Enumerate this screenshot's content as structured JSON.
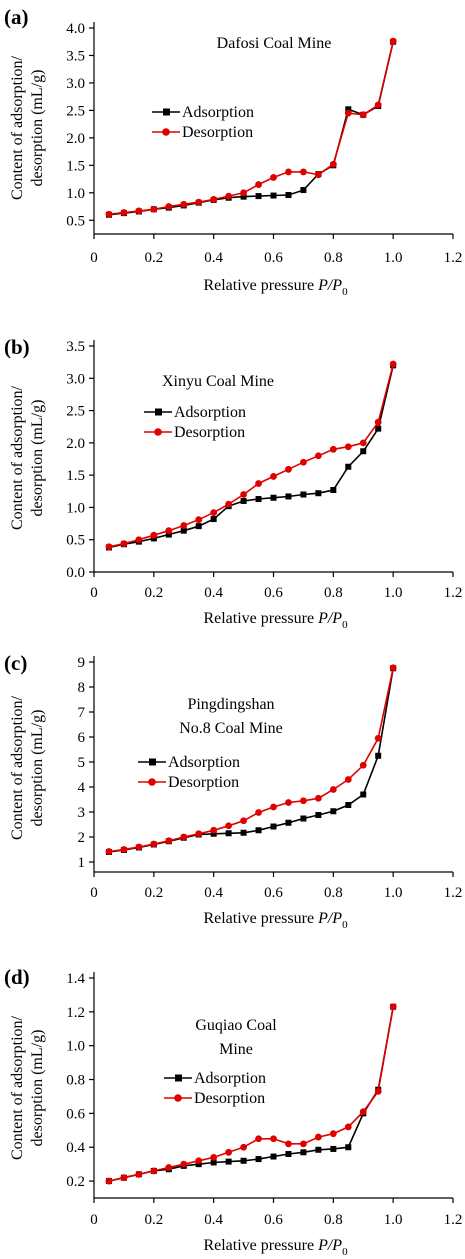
{
  "chart_data": [
    {
      "type": "line",
      "panel": "(a)",
      "title_lines": [
        "Dafosi Coal Mine"
      ],
      "xlabel": "Relative pressure ",
      "xlabel_italic": "P/P",
      "xlabel_sub": "0",
      "ylabel_lines": [
        "Content of adsorption/",
        "desorption (mL/g)"
      ],
      "xlim": [
        0,
        1.2
      ],
      "ylim": [
        0.25,
        4.0
      ],
      "xticks": [
        0,
        0.2,
        0.4,
        0.6,
        0.8,
        1.0,
        1.2
      ],
      "xtick_labels": [
        "0",
        "0.2",
        "0.4",
        "0.6",
        "0.8",
        "1.0",
        "1.2"
      ],
      "yticks": [
        0.5,
        1.0,
        1.5,
        2.0,
        2.5,
        3.0,
        3.5,
        4.0
      ],
      "ytick_labels": [
        "0.5",
        "1.0",
        "1.5",
        "2.0",
        "2.5",
        "3.0",
        "3.5",
        "4.0"
      ],
      "legend": "center-left",
      "series": [
        {
          "name": "Adsorption",
          "color": "#000000",
          "marker": "square",
          "x": [
            0.05,
            0.1,
            0.15,
            0.2,
            0.25,
            0.3,
            0.35,
            0.4,
            0.45,
            0.5,
            0.55,
            0.6,
            0.65,
            0.7,
            0.75,
            0.8,
            0.85,
            0.9,
            0.95,
            1.0
          ],
          "y": [
            0.6,
            0.63,
            0.66,
            0.7,
            0.73,
            0.77,
            0.82,
            0.87,
            0.91,
            0.93,
            0.94,
            0.95,
            0.96,
            1.05,
            1.34,
            1.5,
            2.52,
            2.42,
            2.58,
            3.75
          ]
        },
        {
          "name": "Desorption",
          "color": "#e00000",
          "marker": "circle",
          "x": [
            0.05,
            0.1,
            0.15,
            0.2,
            0.25,
            0.3,
            0.35,
            0.4,
            0.45,
            0.5,
            0.55,
            0.6,
            0.65,
            0.7,
            0.75,
            0.8,
            0.85,
            0.9,
            0.95,
            1.0
          ],
          "y": [
            0.61,
            0.64,
            0.67,
            0.7,
            0.75,
            0.79,
            0.83,
            0.88,
            0.94,
            1.0,
            1.15,
            1.28,
            1.38,
            1.38,
            1.33,
            1.52,
            2.45,
            2.42,
            2.6,
            3.76
          ]
        }
      ]
    },
    {
      "type": "line",
      "panel": "(b)",
      "title_lines": [
        "Xinyu Coal Mine"
      ],
      "xlabel": "Relative pressure ",
      "xlabel_italic": "P/P",
      "xlabel_sub": "0",
      "ylabel_lines": [
        "Content of adsorption/",
        "desorption (mL/g)"
      ],
      "xlim": [
        0,
        1.2
      ],
      "ylim": [
        0.0,
        3.5
      ],
      "xticks": [
        0,
        0.2,
        0.4,
        0.6,
        0.8,
        1.0,
        1.2
      ],
      "xtick_labels": [
        "0",
        "0.2",
        "0.4",
        "0.6",
        "0.8",
        "1.0",
        "1.2"
      ],
      "yticks": [
        0.0,
        0.5,
        1.0,
        1.5,
        2.0,
        2.5,
        3.0,
        3.5
      ],
      "ytick_labels": [
        "0.0",
        "0.5",
        "1.0",
        "1.5",
        "2.0",
        "2.5",
        "3.0",
        "3.5"
      ],
      "legend": "center-left",
      "series": [
        {
          "name": "Adsorption",
          "color": "#000000",
          "marker": "square",
          "x": [
            0.05,
            0.1,
            0.15,
            0.2,
            0.25,
            0.3,
            0.35,
            0.4,
            0.45,
            0.5,
            0.55,
            0.6,
            0.65,
            0.7,
            0.75,
            0.8,
            0.85,
            0.9,
            0.95,
            1.0
          ],
          "y": [
            0.38,
            0.43,
            0.47,
            0.52,
            0.58,
            0.64,
            0.71,
            0.82,
            1.02,
            1.1,
            1.13,
            1.15,
            1.17,
            1.2,
            1.22,
            1.27,
            1.63,
            1.87,
            2.22,
            3.2
          ]
        },
        {
          "name": "Desorption",
          "color": "#e00000",
          "marker": "circle",
          "x": [
            0.05,
            0.1,
            0.15,
            0.2,
            0.25,
            0.3,
            0.35,
            0.4,
            0.45,
            0.5,
            0.55,
            0.6,
            0.65,
            0.7,
            0.75,
            0.8,
            0.85,
            0.9,
            0.95,
            1.0
          ],
          "y": [
            0.39,
            0.44,
            0.5,
            0.57,
            0.64,
            0.72,
            0.81,
            0.92,
            1.05,
            1.2,
            1.37,
            1.48,
            1.59,
            1.7,
            1.8,
            1.9,
            1.94,
            2.0,
            2.32,
            3.22
          ]
        }
      ]
    },
    {
      "type": "line",
      "panel": "(c)",
      "title_lines": [
        "Pingdingshan",
        "No.8 Coal Mine"
      ],
      "xlabel": "Relative pressure ",
      "xlabel_italic": "P/P",
      "xlabel_sub": "0",
      "ylabel_lines": [
        "Content of adsorption/",
        "desorption (mL/g)"
      ],
      "xlim": [
        0,
        1.2
      ],
      "ylim": [
        0.6,
        9.0
      ],
      "xticks": [
        0,
        0.2,
        0.4,
        0.6,
        0.8,
        1.0,
        1.2
      ],
      "xtick_labels": [
        "0",
        "0.2",
        "0.4",
        "0.6",
        "0.8",
        "1.0",
        "1.2"
      ],
      "yticks": [
        1,
        2,
        3,
        4,
        5,
        6,
        7,
        8,
        9
      ],
      "ytick_labels": [
        "1",
        "2",
        "3",
        "4",
        "5",
        "6",
        "7",
        "8",
        "9"
      ],
      "legend": "center-left",
      "series": [
        {
          "name": "Adsorption",
          "color": "#000000",
          "marker": "square",
          "x": [
            0.05,
            0.1,
            0.15,
            0.2,
            0.25,
            0.3,
            0.35,
            0.4,
            0.45,
            0.5,
            0.55,
            0.6,
            0.65,
            0.7,
            0.75,
            0.8,
            0.85,
            0.9,
            0.95,
            1.0
          ],
          "y": [
            1.4,
            1.48,
            1.58,
            1.7,
            1.83,
            1.97,
            2.1,
            2.13,
            2.15,
            2.17,
            2.27,
            2.42,
            2.57,
            2.74,
            2.88,
            3.03,
            3.28,
            3.7,
            5.25,
            8.75
          ]
        },
        {
          "name": "Desorption",
          "color": "#e00000",
          "marker": "circle",
          "x": [
            0.05,
            0.1,
            0.15,
            0.2,
            0.25,
            0.3,
            0.35,
            0.4,
            0.45,
            0.5,
            0.55,
            0.6,
            0.65,
            0.7,
            0.75,
            0.8,
            0.85,
            0.9,
            0.95,
            1.0
          ],
          "y": [
            1.42,
            1.5,
            1.6,
            1.72,
            1.85,
            2.0,
            2.13,
            2.27,
            2.45,
            2.65,
            2.98,
            3.2,
            3.38,
            3.45,
            3.55,
            3.9,
            4.3,
            4.87,
            5.95,
            8.77
          ]
        }
      ]
    },
    {
      "type": "line",
      "panel": "(d)",
      "title_lines": [
        "Guqiao Coal",
        "Mine"
      ],
      "xlabel": "Relative pressure ",
      "xlabel_italic": "P/P",
      "xlabel_sub": "0",
      "ylabel_lines": [
        "Content of adsorption/",
        "desorption (mL/g)"
      ],
      "xlim": [
        0,
        1.2
      ],
      "ylim": [
        0.1,
        1.4
      ],
      "xticks": [
        0,
        0.2,
        0.4,
        0.6,
        0.8,
        1.0,
        1.2
      ],
      "xtick_labels": [
        "0",
        "0.2",
        "0.4",
        "0.6",
        "0.8",
        "1.0",
        "1.2"
      ],
      "yticks": [
        0.2,
        0.4,
        0.6,
        0.8,
        1.0,
        1.2,
        1.4
      ],
      "ytick_labels": [
        "0.2",
        "0.4",
        "0.6",
        "0.8",
        "1.0",
        "1.2",
        "1.4"
      ],
      "legend": "center-left",
      "series": [
        {
          "name": "Adsorption",
          "color": "#000000",
          "marker": "square",
          "x": [
            0.05,
            0.1,
            0.15,
            0.2,
            0.25,
            0.3,
            0.35,
            0.4,
            0.45,
            0.5,
            0.55,
            0.6,
            0.65,
            0.7,
            0.75,
            0.8,
            0.85,
            0.9,
            0.95,
            1.0
          ],
          "y": [
            0.2,
            0.22,
            0.24,
            0.26,
            0.27,
            0.29,
            0.3,
            0.31,
            0.315,
            0.32,
            0.33,
            0.345,
            0.36,
            0.37,
            0.385,
            0.39,
            0.4,
            0.6,
            0.74,
            1.23
          ]
        },
        {
          "name": "Desorption",
          "color": "#e00000",
          "marker": "circle",
          "x": [
            0.05,
            0.1,
            0.15,
            0.2,
            0.25,
            0.3,
            0.35,
            0.4,
            0.45,
            0.5,
            0.55,
            0.6,
            0.65,
            0.7,
            0.75,
            0.8,
            0.85,
            0.9,
            0.95,
            1.0
          ],
          "y": [
            0.2,
            0.22,
            0.24,
            0.26,
            0.28,
            0.3,
            0.32,
            0.34,
            0.37,
            0.4,
            0.45,
            0.45,
            0.42,
            0.42,
            0.46,
            0.48,
            0.52,
            0.61,
            0.73,
            1.23
          ]
        }
      ]
    }
  ]
}
